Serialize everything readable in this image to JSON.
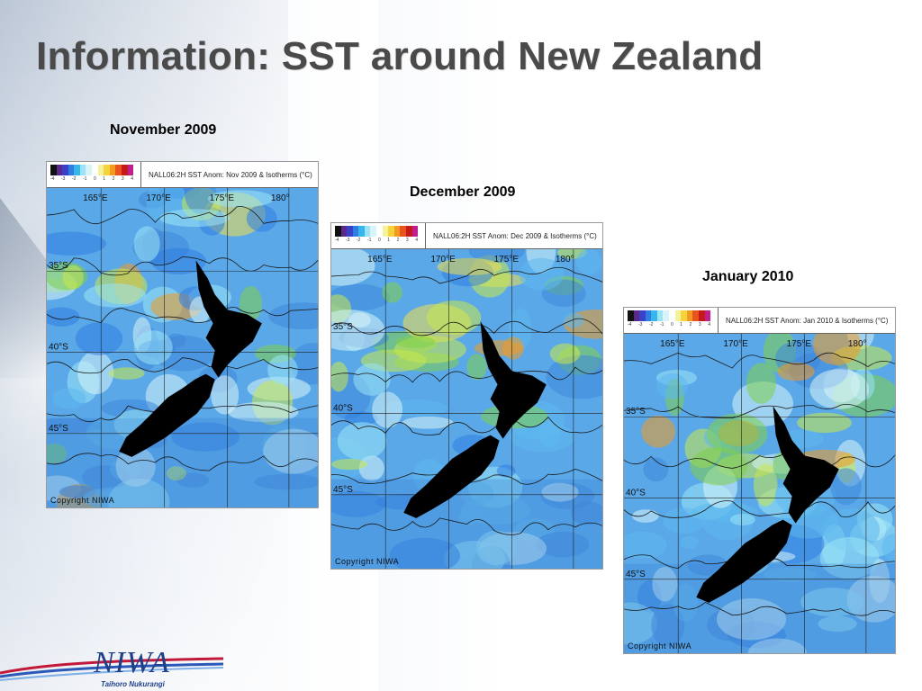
{
  "slide": {
    "title": "Information: SST around New Zealand"
  },
  "palette": {
    "title_color": "#4a4a4a",
    "scale_colors": [
      "#111111",
      "#5a2a8a",
      "#3b40c8",
      "#2f7de1",
      "#36b6ea",
      "#9be3f5",
      "#d8f4f8",
      "#ffffff",
      "#f4f39a",
      "#f7d33b",
      "#f39a22",
      "#e8541b",
      "#c41a1a",
      "#c21f8e"
    ],
    "ocean_base": "#5aa8e8",
    "ocean_cool": "#3f86d8",
    "ocean_warm": "#7fd04a",
    "land": "#000000"
  },
  "scale_ticks": [
    "-4",
    "-3",
    "-2",
    "-1",
    "0",
    "1",
    "2",
    "3",
    "4"
  ],
  "maps": [
    {
      "caption": "November 2009",
      "header": "NALL06:2H SST Anom: Nov 2009 & Isotherms (°C)",
      "lon_labels": [
        "165°E",
        "170°E",
        "175°E",
        "180°"
      ],
      "lat_labels": [
        "35°S",
        "40°S",
        "45°S"
      ],
      "copyright": "Copyright NIWA"
    },
    {
      "caption": "December 2009",
      "header": "NALL06:2H SST Anom: Dec 2009 & Isotherms (°C)",
      "lon_labels": [
        "165°E",
        "170°E",
        "175°E",
        "180°"
      ],
      "lat_labels": [
        "35°S",
        "40°S",
        "45°S"
      ],
      "copyright": "Copyright NIWA"
    },
    {
      "caption": "January 2010",
      "header": "NALL06:2H SST Anom: Jan 2010 & Isotherms (°C)",
      "lon_labels": [
        "165°E",
        "170°E",
        "175°E",
        "180°"
      ],
      "lat_labels": [
        "35°S",
        "40°S",
        "45°S"
      ],
      "copyright": "Copyright NIWA"
    }
  ],
  "logo": {
    "name": "NIWA",
    "tagline": "Taihoro Nukurangi"
  }
}
